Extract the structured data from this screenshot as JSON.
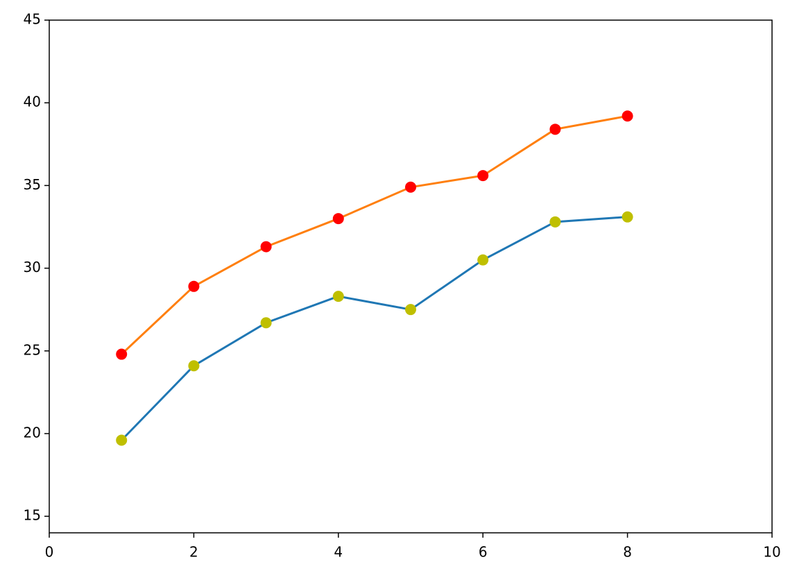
{
  "chart_data": {
    "type": "line",
    "x": [
      1,
      2,
      3,
      4,
      5,
      6,
      7,
      8
    ],
    "series": [
      {
        "color": "#1f77b4",
        "marker_color": "#bfbf00",
        "values": [
          19.6,
          24.1,
          26.7,
          28.3,
          27.5,
          30.5,
          32.8,
          33.1
        ]
      },
      {
        "color": "#ff7f0e",
        "marker_color": "#ff0000",
        "values": [
          24.8,
          28.9,
          31.3,
          33.0,
          34.9,
          35.6,
          38.4,
          39.2
        ]
      }
    ],
    "xlim": [
      0,
      10
    ],
    "xticks": [
      0,
      2,
      4,
      6,
      8,
      10
    ],
    "ylim": [
      14,
      45
    ],
    "yticks": [
      15,
      20,
      25,
      30,
      35,
      40,
      45
    ],
    "grid": false
  }
}
